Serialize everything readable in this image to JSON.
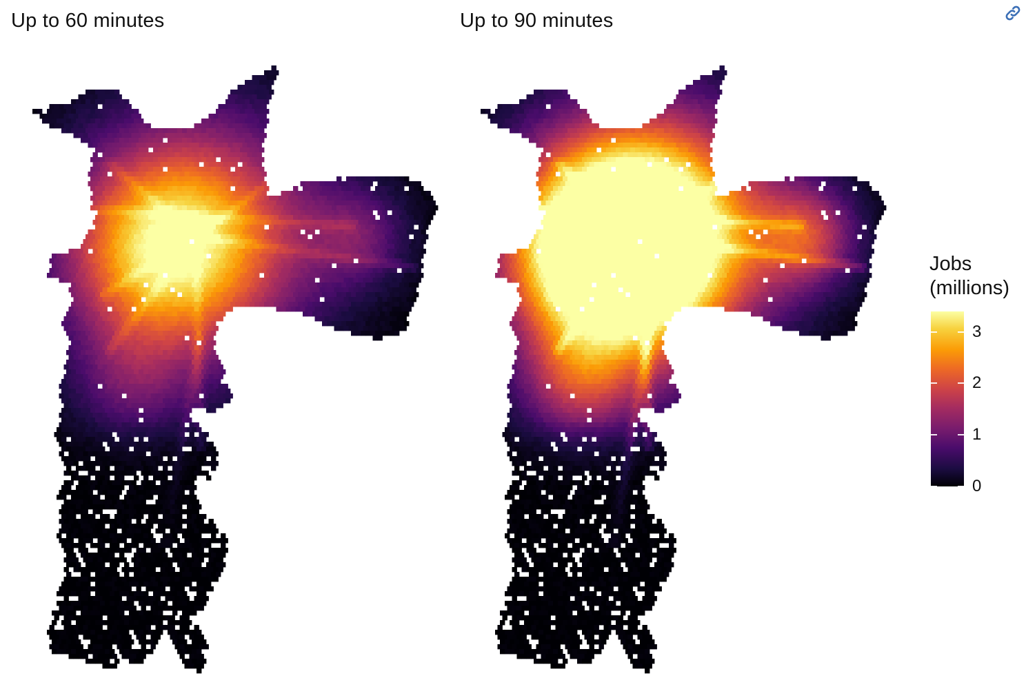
{
  "panels": [
    {
      "title": "Up to 60 minutes"
    },
    {
      "title": "Up to 90 minutes"
    }
  ],
  "legend": {
    "title_line1": "Jobs",
    "title_line2": "(millions)",
    "ticks": [
      "0",
      "1",
      "2",
      "3"
    ],
    "min": 0,
    "max": 3.4,
    "palette": "inferno",
    "colors": [
      "#000004",
      "#1b0c41",
      "#4a0c6b",
      "#781c6d",
      "#a52c60",
      "#cf4446",
      "#ed6925",
      "#fb9b06",
      "#f7d13d",
      "#fcffa4"
    ]
  },
  "link_icon": "link-icon",
  "accent_color": "#3b6fb6"
}
